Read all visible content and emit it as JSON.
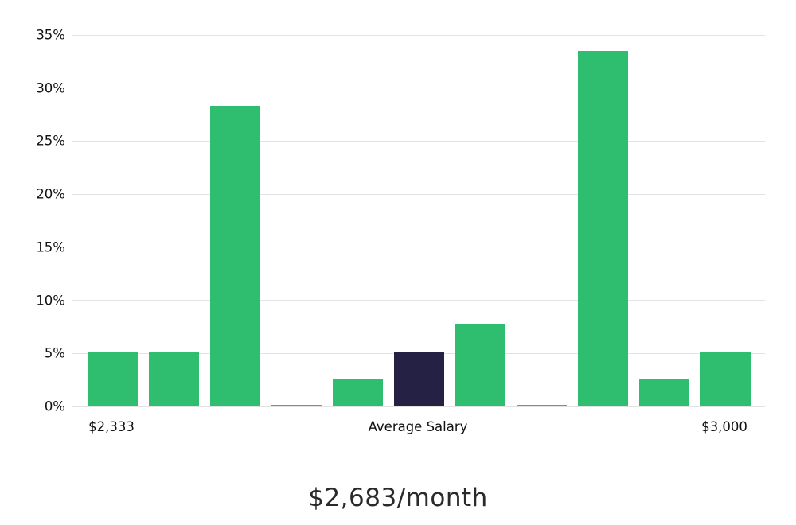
{
  "chart_data": {
    "type": "bar",
    "title": "$2,683/month",
    "values": [
      5.2,
      5.2,
      28.3,
      0.15,
      2.6,
      5.2,
      7.8,
      0.15,
      33.5,
      2.6,
      5.2
    ],
    "highlight_index": 5,
    "bar_color": "#2fbe70",
    "highlight_color": "#252144",
    "ylim": [
      0,
      35
    ],
    "ytick_step": 5,
    "ytick_labels": [
      "0%",
      "5%",
      "10%",
      "15%",
      "20%",
      "25%",
      "30%",
      "35%"
    ],
    "x_labels": [
      {
        "text": "$2,333",
        "bar_index": 0
      },
      {
        "text": "Average Salary",
        "bar_index": 5
      },
      {
        "text": "$3,000",
        "bar_index": 10
      }
    ],
    "grid": true,
    "legend": "none",
    "xlabel": "",
    "ylabel": ""
  }
}
